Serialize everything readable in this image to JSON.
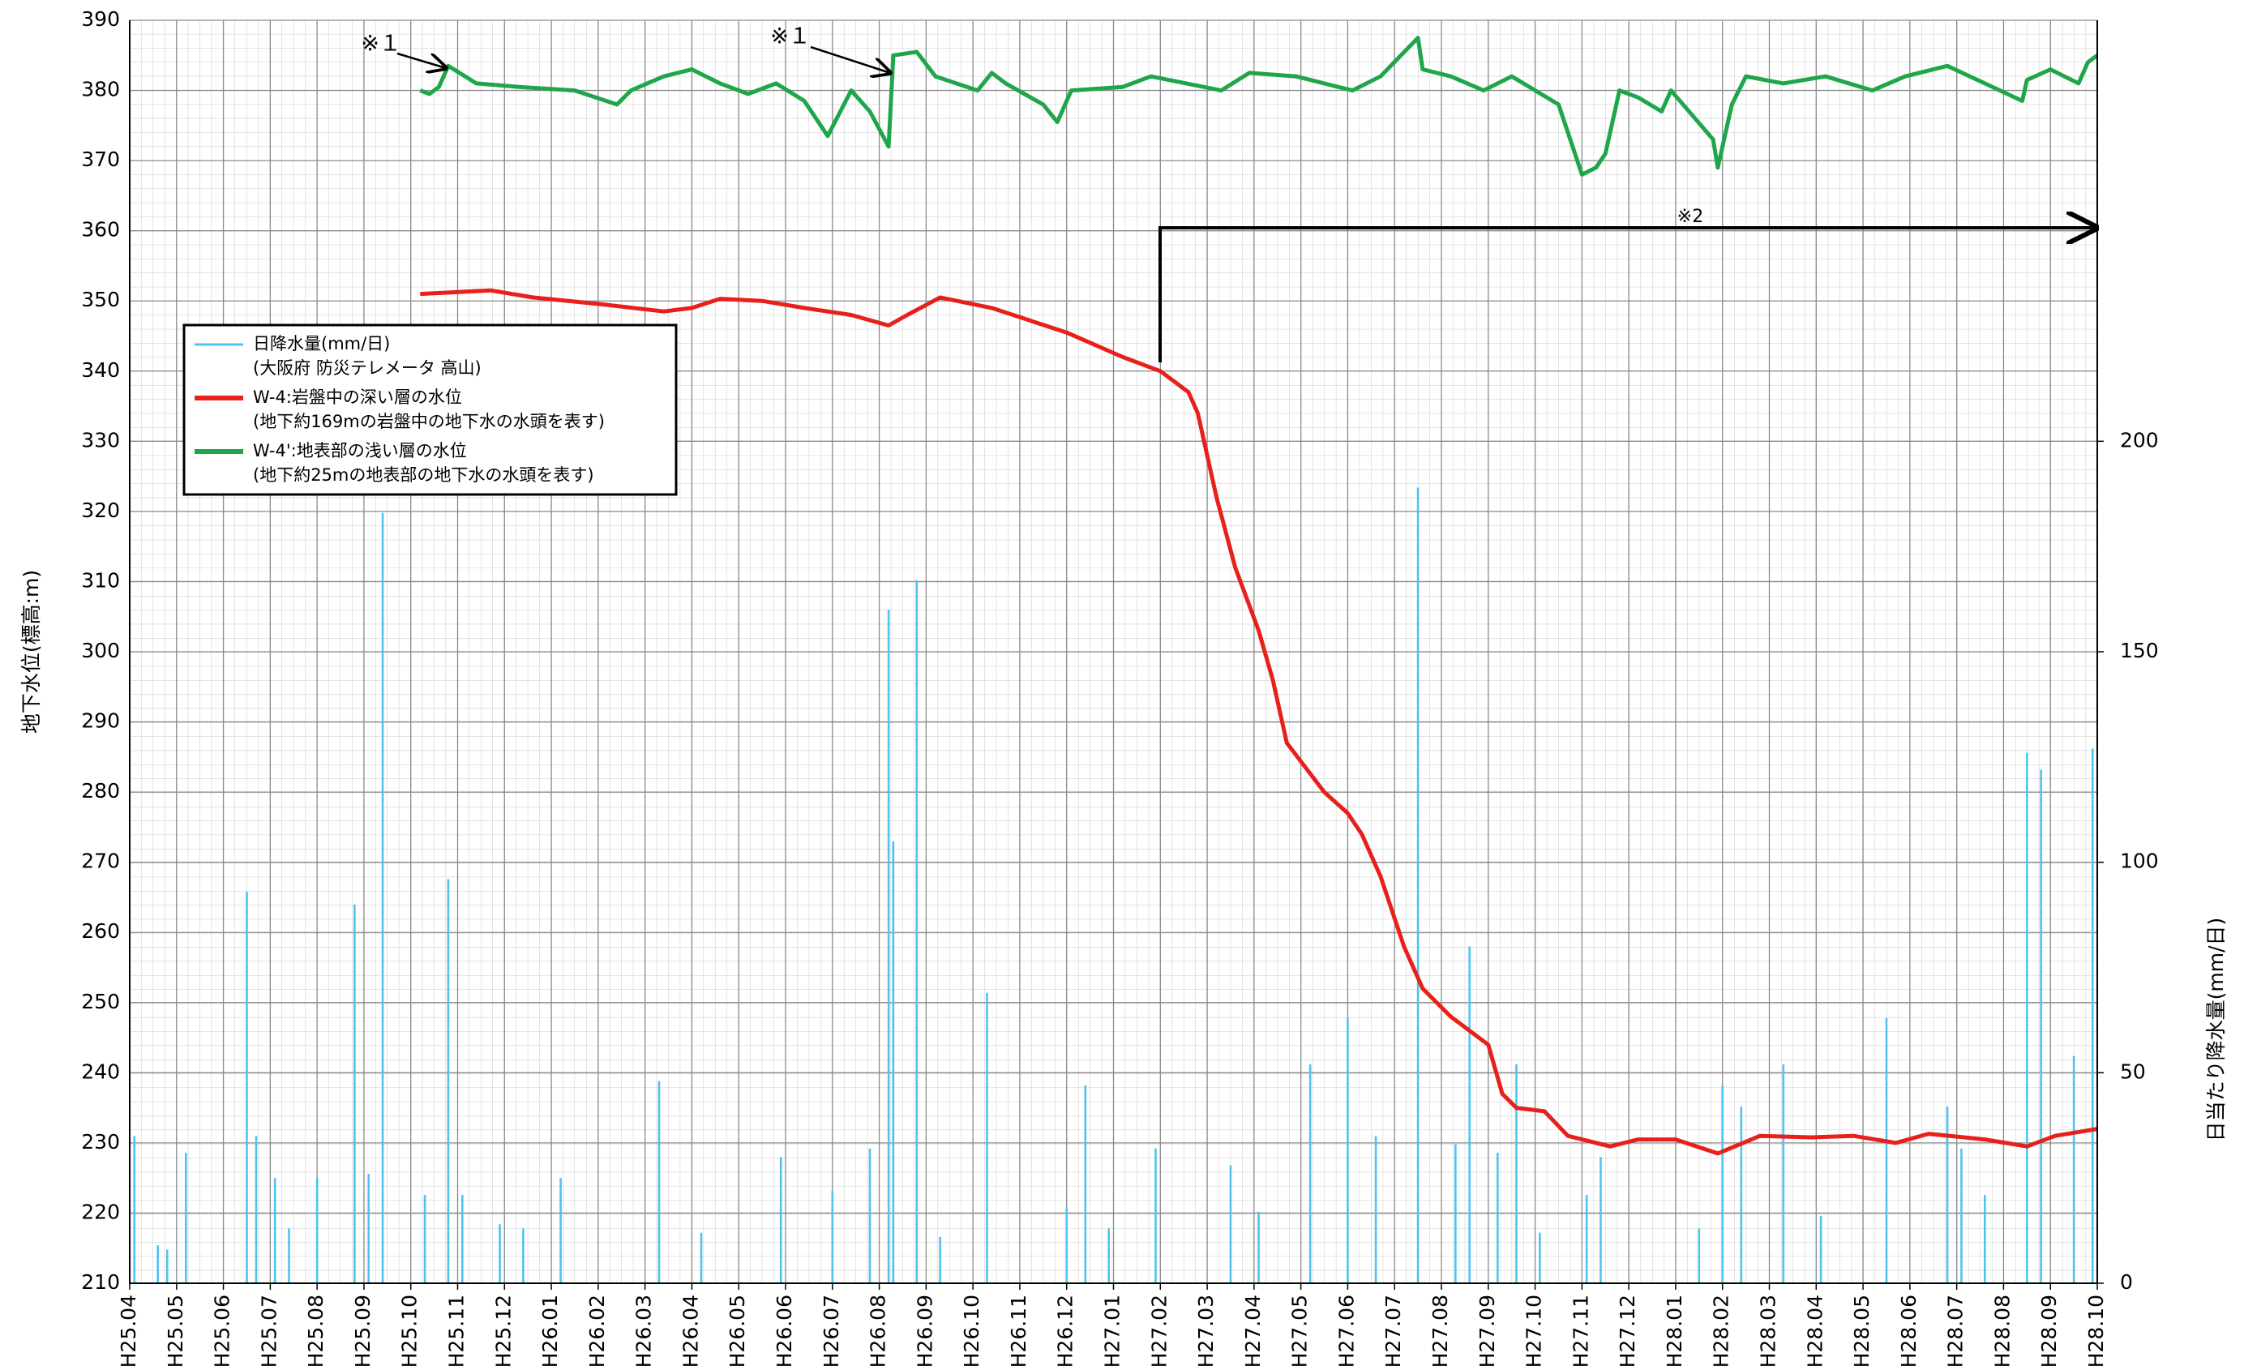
{
  "chart_data": {
    "type": "line",
    "y_label": "地下水位(標高:m)",
    "y2_label": "日当たり降水量(mm/日)",
    "xlim": [
      0,
      42
    ],
    "xticks": [
      {
        "value": 0,
        "label": "H25.04"
      },
      {
        "value": 1,
        "label": "H25.05"
      },
      {
        "value": 2,
        "label": "H25.06"
      },
      {
        "value": 3,
        "label": "H25.07"
      },
      {
        "value": 4,
        "label": "H25.08"
      },
      {
        "value": 5,
        "label": "H25.09"
      },
      {
        "value": 6,
        "label": "H25.10"
      },
      {
        "value": 7,
        "label": "H25.11"
      },
      {
        "value": 8,
        "label": "H25.12"
      },
      {
        "value": 9,
        "label": "H26.01"
      },
      {
        "value": 10,
        "label": "H26.02"
      },
      {
        "value": 11,
        "label": "H26.03"
      },
      {
        "value": 12,
        "label": "H26.04"
      },
      {
        "value": 13,
        "label": "H26.05"
      },
      {
        "value": 14,
        "label": "H26.06"
      },
      {
        "value": 15,
        "label": "H26.07"
      },
      {
        "value": 16,
        "label": "H26.08"
      },
      {
        "value": 17,
        "label": "H26.09"
      },
      {
        "value": 18,
        "label": "H26.10"
      },
      {
        "value": 19,
        "label": "H26.11"
      },
      {
        "value": 20,
        "label": "H26.12"
      },
      {
        "value": 21,
        "label": "H27.01"
      },
      {
        "value": 22,
        "label": "H27.02"
      },
      {
        "value": 23,
        "label": "H27.03"
      },
      {
        "value": 24,
        "label": "H27.04"
      },
      {
        "value": 25,
        "label": "H27.05"
      },
      {
        "value": 26,
        "label": "H27.06"
      },
      {
        "value": 27,
        "label": "H27.07"
      },
      {
        "value": 28,
        "label": "H27.08"
      },
      {
        "value": 29,
        "label": "H27.09"
      },
      {
        "value": 30,
        "label": "H27.10"
      },
      {
        "value": 31,
        "label": "H27.11"
      },
      {
        "value": 32,
        "label": "H27.12"
      },
      {
        "value": 33,
        "label": "H28.01"
      },
      {
        "value": 34,
        "label": "H28.02"
      },
      {
        "value": 35,
        "label": "H28.03"
      },
      {
        "value": 36,
        "label": "H28.04"
      },
      {
        "value": 37,
        "label": "H28.05"
      },
      {
        "value": 38,
        "label": "H28.06"
      },
      {
        "value": 39,
        "label": "H28.07"
      },
      {
        "value": 40,
        "label": "H28.08"
      },
      {
        "value": 41,
        "label": "H28.09"
      },
      {
        "value": 42,
        "label": "H28.10"
      }
    ],
    "ylim": [
      210,
      390
    ],
    "yticks": [
      210,
      220,
      230,
      240,
      250,
      260,
      270,
      280,
      290,
      300,
      310,
      320,
      330,
      340,
      350,
      360,
      370,
      380,
      390
    ],
    "y2lim": [
      0,
      300
    ],
    "y2ticks": [
      0,
      50,
      100,
      150,
      200
    ],
    "grid": true,
    "series": [
      {
        "name": "日降水量(mm/日)",
        "note": "(大阪府 防災テレメータ 高山)",
        "type": "bar",
        "axis": "y2",
        "color": "#4fc3f0",
        "x": [
          0.1,
          0.6,
          0.8,
          1.2,
          2.5,
          2.7,
          3.1,
          3.4,
          4.0,
          4.8,
          5.1,
          5.4,
          6.3,
          6.8,
          7.1,
          7.9,
          8.4,
          9.2,
          11.3,
          12.2,
          13.9,
          15.0,
          15.8,
          16.2,
          16.3,
          16.8,
          17.3,
          18.3,
          20.0,
          20.4,
          20.9,
          21.9,
          23.5,
          24.1,
          25.2,
          26.0,
          26.6,
          27.5,
          28.3,
          28.6,
          29.2,
          29.6,
          30.1,
          31.1,
          31.4,
          33.5,
          34.0,
          34.4,
          35.3,
          36.1,
          37.5,
          38.8,
          39.1,
          39.6,
          40.5,
          40.8,
          41.5,
          41.9
        ],
        "values": [
          35,
          9,
          8,
          31,
          93,
          35,
          25,
          13,
          25,
          90,
          26,
          183,
          21,
          96,
          21,
          14,
          13,
          25,
          48,
          12,
          30,
          22,
          32,
          160,
          105,
          167,
          11,
          69,
          18,
          47,
          13,
          32,
          28,
          17,
          52,
          63,
          35,
          189,
          33,
          80,
          31,
          52,
          12,
          21,
          30,
          13,
          47,
          42,
          52,
          16,
          63,
          42,
          32,
          21,
          126,
          122,
          54,
          127
        ]
      },
      {
        "name": "W-4:岩盤中の深い層の水位",
        "note": "(地下約169mの岩盤中の地下水の水頭を表す)",
        "type": "line",
        "color": "#e8201c",
        "x": [
          6.2,
          7.7,
          8.6,
          10.1,
          11.4,
          12.0,
          12.6,
          13.5,
          14.4,
          15.4,
          16.2,
          16.6,
          17.3,
          18.4,
          20.0,
          21.2,
          22.0,
          22.6,
          22.8,
          23.2,
          23.6,
          24.1,
          24.4,
          24.7,
          25.5,
          26.0,
          26.3,
          26.7,
          27.2,
          27.6,
          28.2,
          29.0,
          29.3,
          29.6,
          30.2,
          30.7,
          31.6,
          32.2,
          33.0,
          33.9,
          34.8,
          35.9,
          36.8,
          37.7,
          38.4,
          39.6,
          40.5,
          41.1,
          42.0
        ],
        "values": [
          351,
          351.5,
          350.5,
          349.5,
          348.5,
          349,
          350.3,
          350,
          349,
          348,
          346.5,
          348,
          350.5,
          349,
          345.5,
          342,
          340,
          337,
          334,
          322,
          312,
          303,
          296,
          287,
          280,
          277,
          274,
          268,
          258,
          252,
          248,
          244,
          237,
          235,
          234.5,
          231,
          229.5,
          230.5,
          230.5,
          228.5,
          231,
          230.8,
          231,
          230,
          231.3,
          230.5,
          229.5,
          231,
          232
        ]
      },
      {
        "name": "W-4':地表部の浅い層の水位",
        "note": "(地下約25mの地表部の地下水の水頭を表す)",
        "type": "line",
        "color": "#1fa64a",
        "x": [
          6.2,
          6.4,
          6.6,
          6.8,
          7.4,
          8.3,
          9.5,
          10.4,
          10.7,
          11.4,
          12.0,
          12.6,
          13.2,
          13.8,
          14.4,
          14.9,
          15.4,
          15.8,
          16.2,
          16.3,
          16.8,
          17.2,
          18.1,
          18.4,
          18.7,
          19.5,
          19.8,
          20.1,
          21.2,
          21.8,
          23.3,
          23.9,
          24.9,
          26.1,
          26.7,
          27.5,
          27.6,
          28.2,
          28.9,
          29.5,
          30.5,
          31.0,
          31.3,
          31.5,
          31.8,
          32.2,
          32.7,
          32.9,
          33.8,
          33.9,
          34.2,
          34.5,
          35.3,
          36.2,
          37.2,
          37.9,
          38.8,
          39.6,
          40.4,
          40.5,
          41.0,
          41.6,
          41.8,
          42.0
        ],
        "values": [
          380,
          379.5,
          380.5,
          383.5,
          381,
          380.5,
          380,
          378,
          380,
          382,
          383,
          381,
          379.5,
          381,
          378.5,
          373.5,
          380,
          377,
          372,
          385,
          385.5,
          382,
          380,
          382.5,
          381,
          378,
          375.5,
          380,
          380.5,
          382,
          380,
          382.5,
          382,
          380,
          382,
          387.5,
          383,
          382,
          380,
          382,
          378,
          368,
          369,
          371,
          380,
          379,
          377,
          380,
          373,
          369,
          378,
          382,
          381,
          382,
          380,
          382,
          383.5,
          381,
          378.5,
          381.5,
          383,
          381,
          384,
          385
        ]
      }
    ],
    "annotations": [
      "※１",
      "※１",
      "※2"
    ]
  }
}
